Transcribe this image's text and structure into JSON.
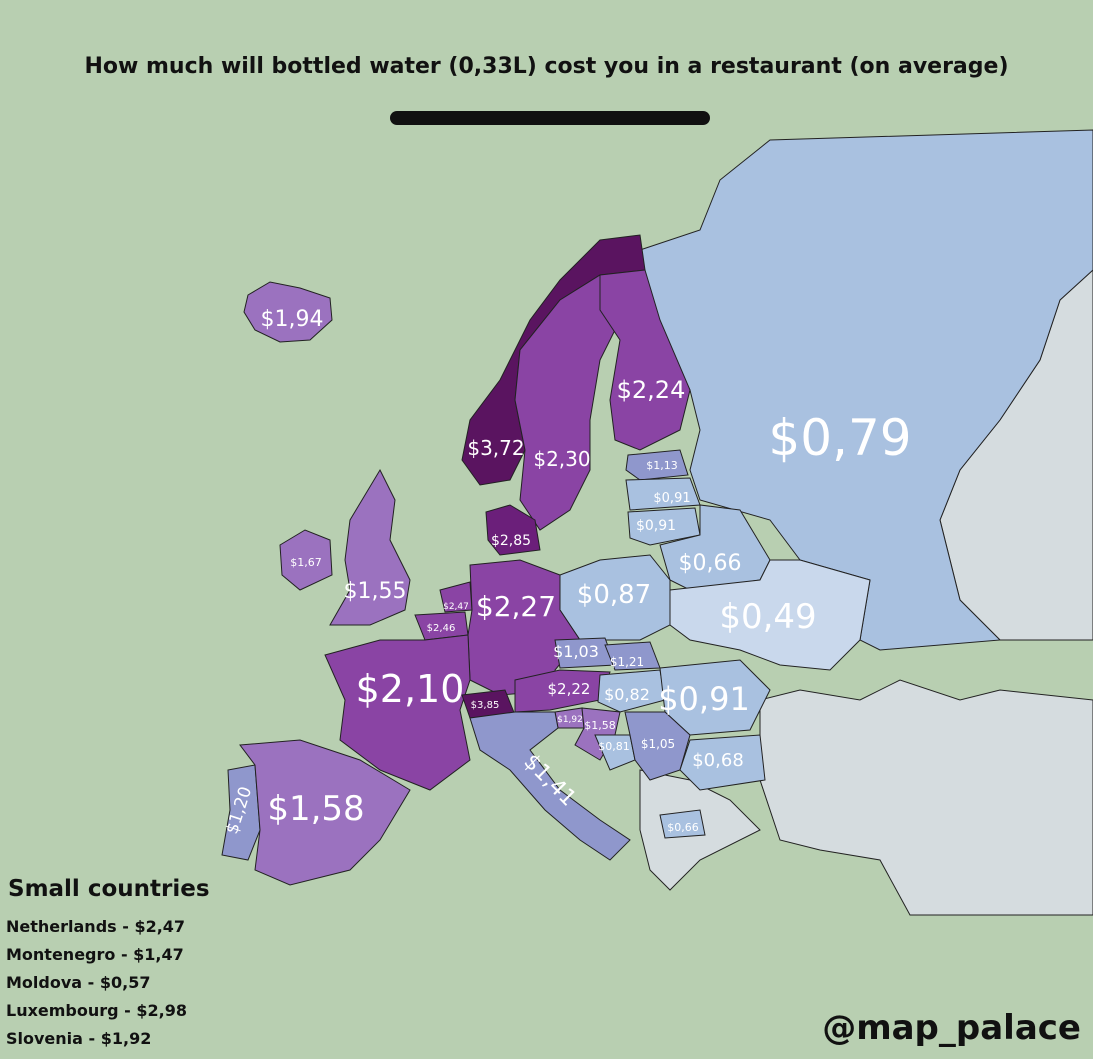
{
  "title": "How much will bottled water (0,33L) cost you in a restaurant (on average)",
  "colors": {
    "sea": "#b8cfb1",
    "no_data": "#d5dcdf",
    "very_low": "#c9d8ec",
    "low": "#a9c1e0",
    "mid_low": "#8f97cc",
    "mid": "#9b72bf",
    "high": "#8a44a4",
    "very_high": "#5a1460",
    "label": "#ffffff"
  },
  "regions": [
    {
      "name": "Russia",
      "price": "$0,79",
      "color": "#a9c1e0"
    },
    {
      "name": "Iceland",
      "price": "$1,94",
      "color": "#9b72bf"
    },
    {
      "name": "Norway",
      "price": "$3,72",
      "color": "#5a1460"
    },
    {
      "name": "Sweden",
      "price": "$2,30",
      "color": "#8a44a4"
    },
    {
      "name": "Finland",
      "price": "$2,24",
      "color": "#8a44a4"
    },
    {
      "name": "Estonia",
      "price": "$1,13",
      "color": "#8f97cc"
    },
    {
      "name": "Latvia",
      "price": "$0,91",
      "color": "#a9c1e0"
    },
    {
      "name": "Lithuania",
      "price": "$0,91",
      "color": "#a9c1e0"
    },
    {
      "name": "Denmark",
      "price": "$2,85",
      "color": "#6b1f7a"
    },
    {
      "name": "Ireland",
      "price": "$1,67",
      "color": "#9b72bf"
    },
    {
      "name": "United Kingdom",
      "price": "$1,55",
      "color": "#9b72bf"
    },
    {
      "name": "Belarus",
      "price": "$0,66",
      "color": "#a9c1e0"
    },
    {
      "name": "Germany",
      "price": "$2,27",
      "color": "#8a44a4"
    },
    {
      "name": "Poland",
      "price": "$0,87",
      "color": "#a9c1e0"
    },
    {
      "name": "Ukraine",
      "price": "$0,49",
      "color": "#c9d8ec"
    },
    {
      "name": "Netherlands",
      "price": "$2,47",
      "color": "#8a44a4"
    },
    {
      "name": "Belgium",
      "price": "$2,46",
      "color": "#8a44a4"
    },
    {
      "name": "Czechia",
      "price": "$1,03",
      "color": "#8f97cc"
    },
    {
      "name": "Slovakia",
      "price": "$1,21",
      "color": "#8f97cc"
    },
    {
      "name": "France",
      "price": "$2,10",
      "color": "#8a44a4"
    },
    {
      "name": "Switzerland",
      "price": "$3,85",
      "color": "#5a1460"
    },
    {
      "name": "Austria",
      "price": "$2,22",
      "color": "#8a44a4"
    },
    {
      "name": "Hungary",
      "price": "$0,82",
      "color": "#a9c1e0"
    },
    {
      "name": "Romania",
      "price": "$0,91",
      "color": "#a9c1e0"
    },
    {
      "name": "Slovenia",
      "price": "$1,92",
      "color": "#9b72bf"
    },
    {
      "name": "Croatia",
      "price": "$1,58",
      "color": "#9b72bf"
    },
    {
      "name": "Bosnia",
      "price": "$0,81",
      "color": "#a9c1e0"
    },
    {
      "name": "Serbia",
      "price": "$1,05",
      "color": "#8f97cc"
    },
    {
      "name": "Bulgaria",
      "price": "$0,68",
      "color": "#a9c1e0"
    },
    {
      "name": "Italy",
      "price": "$1,41",
      "color": "#8f97cc"
    },
    {
      "name": "Portugal",
      "price": "$1,20",
      "color": "#8f97cc"
    },
    {
      "name": "Spain",
      "price": "$1,58",
      "color": "#9b72bf"
    },
    {
      "name": "North Macedonia",
      "price": "$0,66",
      "color": "#a9c1e0"
    }
  ],
  "small_countries": {
    "heading": "Small countries",
    "items": [
      "Netherlands - $2,47",
      "Montenegro - $1,47",
      "Moldova - $0,57",
      "Luxembourg - $2,98",
      "Slovenia - $1,92"
    ]
  },
  "credit": "@map_palace"
}
